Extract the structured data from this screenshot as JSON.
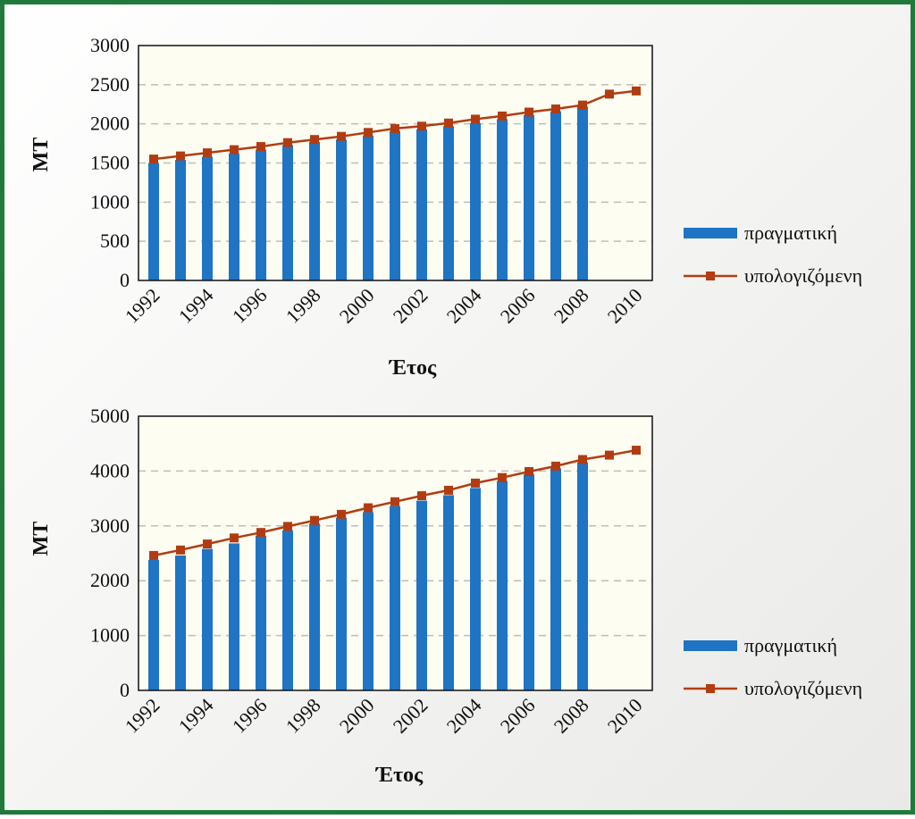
{
  "colors": {
    "frame": "#1f7a3c",
    "plot_bg": "#fdfdf2",
    "bar": "#1f74c4",
    "line": "#b23c12",
    "grid": "#bdbdbd"
  },
  "chart_data": [
    {
      "type": "bar",
      "xlabel": "Έτος",
      "ylabel": "MT",
      "ylim": [
        0,
        3000
      ],
      "yticks": [
        0,
        500,
        1000,
        1500,
        2000,
        2500,
        3000
      ],
      "xtick_labels": [
        "1992",
        "1994",
        "1996",
        "1998",
        "2000",
        "2002",
        "2004",
        "2006",
        "2008",
        "2010"
      ],
      "grid": "horizontal dashed",
      "legend_position": "right",
      "categories": [
        "1992",
        "1993",
        "1994",
        "1995",
        "1996",
        "1997",
        "1998",
        "1999",
        "2000",
        "2001",
        "2002",
        "2003",
        "2004",
        "2005",
        "2006",
        "2007",
        "2008",
        "2009",
        "2010"
      ],
      "series": [
        {
          "name": "πραγματική",
          "type": "bar",
          "values": [
            1500,
            1540,
            1580,
            1620,
            1670,
            1730,
            1770,
            1800,
            1850,
            1910,
            1930,
            1970,
            2010,
            2060,
            2110,
            2160,
            2220,
            null,
            null
          ]
        },
        {
          "name": "υπολογιζόμενη",
          "type": "line",
          "values": [
            1550,
            1590,
            1630,
            1670,
            1710,
            1760,
            1800,
            1840,
            1890,
            1940,
            1970,
            2010,
            2060,
            2100,
            2150,
            2190,
            2240,
            2380,
            2420
          ]
        }
      ]
    },
    {
      "type": "bar",
      "xlabel": "Έτος",
      "ylabel": "MT",
      "ylim": [
        0,
        5000
      ],
      "yticks": [
        0,
        1000,
        2000,
        3000,
        4000,
        5000
      ],
      "xtick_labels": [
        "1992",
        "1994",
        "1996",
        "1998",
        "2000",
        "2002",
        "2004",
        "2006",
        "2008",
        "2010"
      ],
      "grid": "horizontal dashed",
      "legend_position": "right",
      "categories": [
        "1992",
        "1993",
        "1994",
        "1995",
        "1996",
        "1997",
        "1998",
        "1999",
        "2000",
        "2001",
        "2002",
        "2003",
        "2004",
        "2005",
        "2006",
        "2007",
        "2008",
        "2009",
        "2010"
      ],
      "series": [
        {
          "name": "πραγματική",
          "type": "bar",
          "values": [
            2380,
            2460,
            2580,
            2680,
            2820,
            2920,
            3040,
            3150,
            3250,
            3360,
            3460,
            3560,
            3690,
            3820,
            3940,
            4050,
            4160,
            null,
            null
          ]
        },
        {
          "name": "υπολογιζόμενη",
          "type": "line",
          "values": [
            2460,
            2560,
            2670,
            2780,
            2880,
            2990,
            3100,
            3210,
            3330,
            3440,
            3550,
            3650,
            3780,
            3880,
            3990,
            4090,
            4210,
            4290,
            4380
          ]
        }
      ]
    }
  ]
}
